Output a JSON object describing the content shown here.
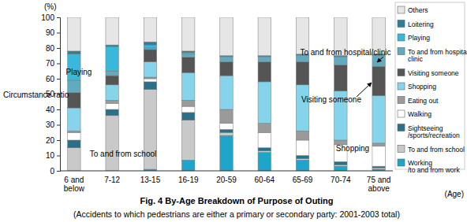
{
  "chart_data": {
    "type": "bar",
    "stacked": true,
    "legend": "right",
    "title": "Fig. 4 By-Age Breakdown of Purpose of Outing",
    "subtitle": "(Accidents to which pedestrians are either a primary or secondary party: 2001-2003 total)",
    "y_label": "Circumstance ratio",
    "y_unit": "(%)",
    "x_label": "(Age)",
    "annotations": [
      "Playing",
      "To and from school",
      "Visiting someone",
      "Shopping",
      "To and from hospital/clinic"
    ],
    "categories": [
      "6 and below",
      "7-12",
      "13-15",
      "16-19",
      "20-59",
      "60-64",
      "65-69",
      "70-74",
      "75 and above"
    ],
    "ylim": [
      0,
      100
    ],
    "yticks": [
      0,
      10,
      20,
      30,
      40,
      50,
      60,
      70,
      80,
      90,
      100
    ],
    "series": [
      {
        "name": "Working/to and from work",
        "color": "#1ea5c9",
        "values": [
          0,
          0,
          1,
          7,
          23,
          12,
          7,
          3,
          1
        ]
      },
      {
        "name": "To and from school",
        "color": "#c9c9c9",
        "values": [
          15,
          36,
          52,
          26,
          2,
          1,
          1,
          1,
          1
        ]
      },
      {
        "name": "Sightseeing/sports/recreation",
        "color": "#2b6f88",
        "values": [
          5,
          4,
          5,
          5,
          2,
          2,
          2,
          2,
          1
        ]
      },
      {
        "name": "Walking",
        "color": "#ffffff",
        "values": [
          5,
          4,
          2,
          4,
          4,
          10,
          10,
          11,
          13
        ]
      },
      {
        "name": "Eating out",
        "color": "#9a9a9a",
        "values": [
          1,
          2,
          1,
          4,
          9,
          6,
          6,
          3,
          2
        ]
      },
      {
        "name": "Shopping",
        "color": "#86d3ec",
        "values": [
          15,
          10,
          10,
          18,
          22,
          27,
          30,
          32,
          31
        ]
      },
      {
        "name": "Visiting someone",
        "color": "#555555",
        "values": [
          10,
          6,
          8,
          10,
          9,
          13,
          15,
          17,
          19
        ]
      },
      {
        "name": "To and from hospital/clinic",
        "color": "#62aabd",
        "values": [
          8,
          3,
          1,
          2,
          3,
          3,
          4,
          5,
          7
        ]
      },
      {
        "name": "Playing",
        "color": "#3ab8db",
        "values": [
          17,
          16,
          2,
          1,
          0.5,
          0.5,
          0.5,
          0.5,
          0.5
        ]
      },
      {
        "name": "Loitering",
        "color": "#2d7f9b",
        "values": [
          2,
          1,
          2,
          1,
          0.5,
          0.5,
          0.5,
          0.5,
          0.5
        ]
      },
      {
        "name": "Others",
        "color": "#e6e6e6",
        "values": [
          22,
          18,
          16,
          22,
          25,
          25,
          24,
          25,
          24
        ]
      }
    ]
  }
}
